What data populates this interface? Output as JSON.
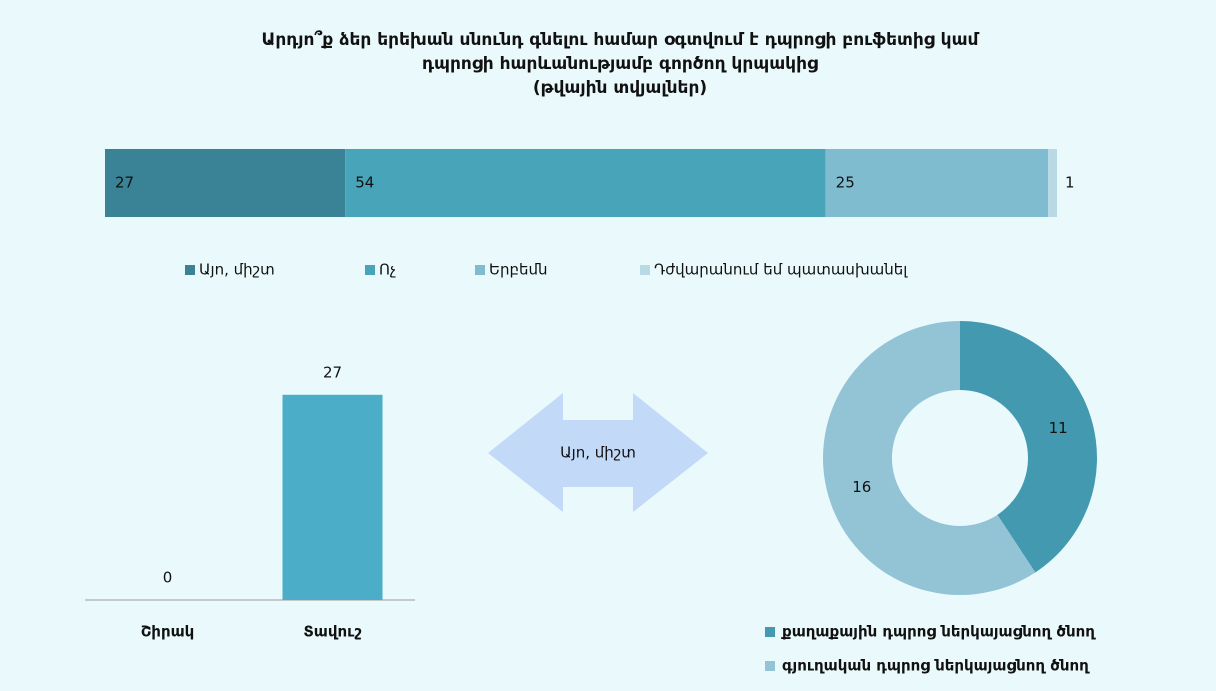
{
  "chart_data": [
    {
      "type": "stacked_hbar",
      "title": [
        "Արդյո՞ք ձեր երեխան սնունդ գնելու համար օգտվում է դպրոցի բուֆետից կամ",
        "դպրոցի հարևանությամբ գործող կրպակից",
        "(թվային տվյալներ)"
      ],
      "series": [
        {
          "name": "Այո, միշտ",
          "color": "#3a8296",
          "values": [
            27
          ]
        },
        {
          "name": "Ոչ",
          "color": "#47a4b9",
          "values": [
            54
          ]
        },
        {
          "name": "Երբեմն",
          "color": "#80bcd0",
          "values": [
            25
          ]
        },
        {
          "name": "Դժվարանում եմ պատասխանել",
          "color": "#b9d9e5",
          "values": [
            1
          ]
        }
      ],
      "legend": "bottom"
    },
    {
      "type": "bar",
      "categories": [
        "Շիրակ",
        "Տավուշ"
      ],
      "values": [
        0,
        27
      ],
      "color": "#4badc7",
      "ylim": [
        0,
        30
      ]
    },
    {
      "type": "donut",
      "series": [
        {
          "name": "քաղաքային դպրոց ներկայացնող ծնող",
          "color": "#4299b0",
          "values": [
            11
          ]
        },
        {
          "name": "գյուղական դպրոց ներկայացնող ծնող",
          "color": "#93c4d6",
          "values": [
            16
          ]
        }
      ],
      "legend": "bottom"
    }
  ],
  "arrow": {
    "label": "Այո, միշտ"
  }
}
